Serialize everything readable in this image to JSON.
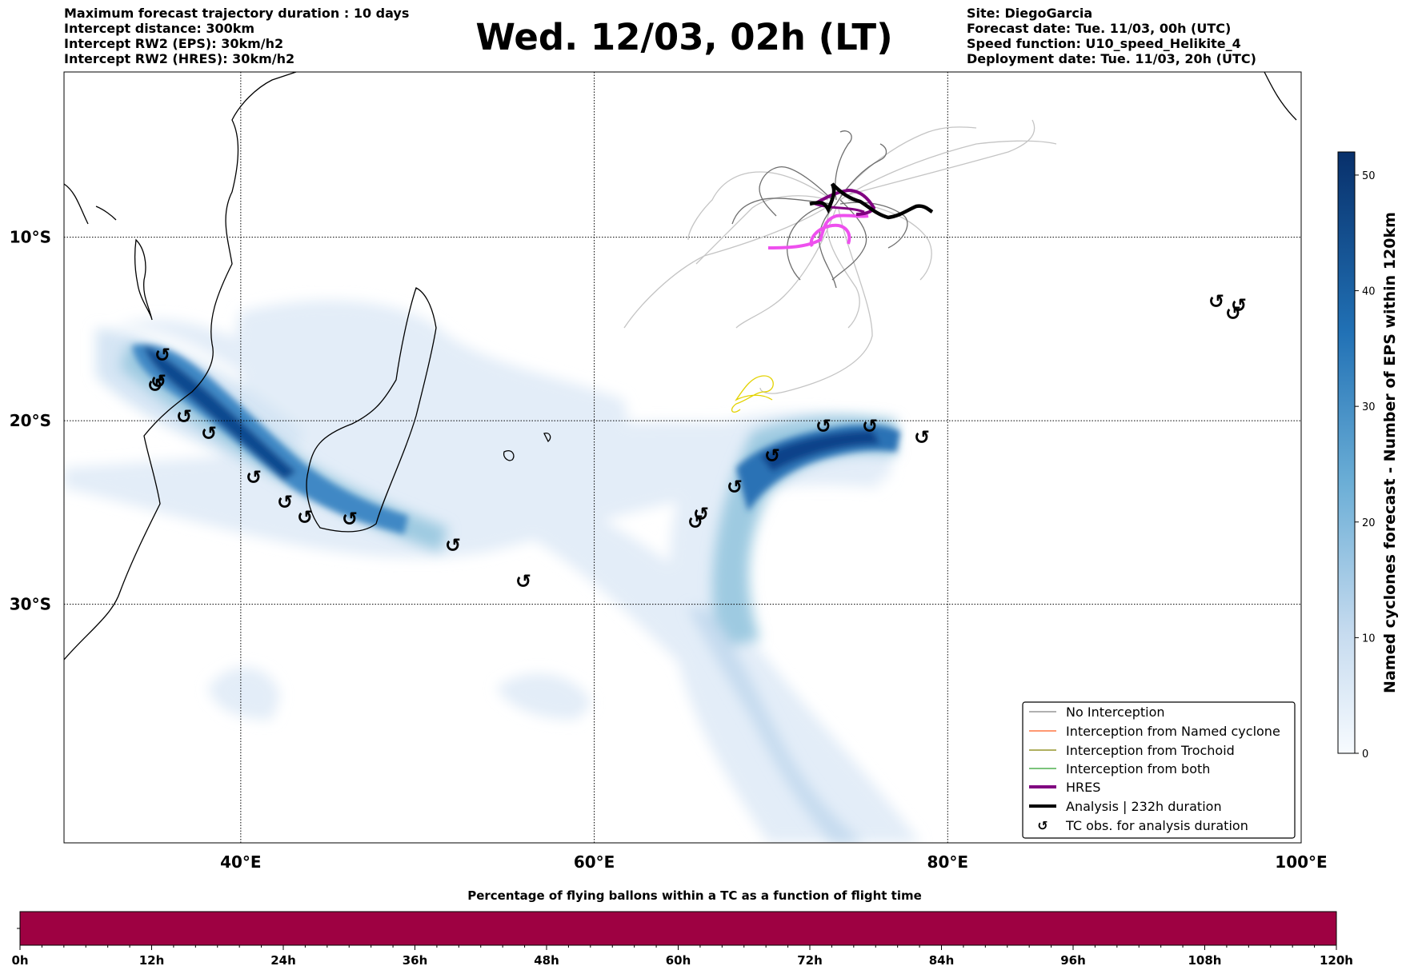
{
  "header": {
    "left_lines": [
      "Maximum forecast trajectory duration : 10 days",
      "Intercept distance: 300km",
      "Intercept RW2 (EPS):  30km/h2",
      "Intercept RW2 (HRES): 30km/h2"
    ],
    "title": "Wed. 12/03, 02h (LT)",
    "right_lines": [
      "Site: DiegoGarcia",
      "Forecast date: Tue. 11/03, 00h (UTC)",
      "Speed function: U10_speed_Helikite_4",
      "Deployment date: Tue. 11/03, 20h (UTC)"
    ]
  },
  "map": {
    "lon_labels": [
      "40°E",
      "60°E",
      "80°E",
      "100°E"
    ],
    "lat_labels": [
      "10°S",
      "20°S",
      "30°S"
    ],
    "lon_values": [
      40,
      60,
      80,
      100
    ],
    "lat_values": [
      -10,
      -20,
      -30
    ],
    "lon_range": [
      30,
      100
    ],
    "lat_range": [
      -43,
      -1
    ]
  },
  "legend": {
    "items": [
      {
        "label": "No Interception",
        "color": "#808080",
        "kind": "line-thin"
      },
      {
        "label": "Interception from Named cyclone",
        "color": "#ff5a1f",
        "kind": "line-thin"
      },
      {
        "label": "Interception from Trochoid",
        "color": "#808000",
        "kind": "line-thin"
      },
      {
        "label": "Interception from both",
        "color": "#2ca02c",
        "kind": "line-thin"
      },
      {
        "label": "HRES",
        "color": "#800080",
        "kind": "line-thick"
      },
      {
        "label": "Analysis | 232h duration",
        "color": "#000000",
        "kind": "line-thick"
      },
      {
        "label": "TC obs. for analysis duration",
        "color": "#000000",
        "kind": "tc-symbol"
      }
    ]
  },
  "tc_symbol": "↺",
  "colorbar_right": {
    "label": "Named cyclones forecast - Number of EPS within 120km",
    "ticks": [
      "0",
      "10",
      "20",
      "30",
      "40",
      "50"
    ],
    "tick_values": [
      0,
      10,
      20,
      30,
      40,
      50
    ],
    "max_value": 52,
    "color_low": "#f7fbff",
    "color_high": "#08306b"
  },
  "colorbar_bottom": {
    "title": "Percentage of flying ballons within a TC as a function of flight time",
    "ticks": [
      "0h",
      "12h",
      "24h",
      "36h",
      "48h",
      "60h",
      "72h",
      "84h",
      "96h",
      "108h",
      "120h"
    ],
    "fill_color": "#9e0142"
  }
}
